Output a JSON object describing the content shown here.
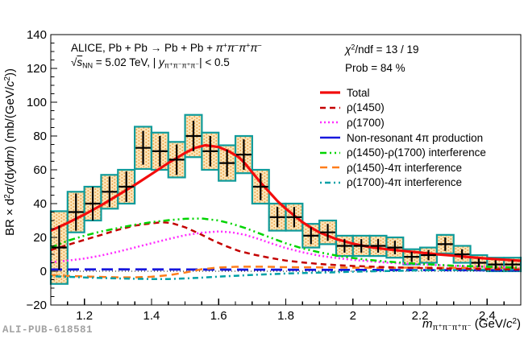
{
  "watermark": "ALI-PUB-618581",
  "annotations": {
    "alice_line1": [
      {
        "t": "ALICE, Pb + Pb "
      },
      {
        "t": "→"
      },
      {
        "t": " Pb + Pb + "
      },
      {
        "i": "π"
      },
      {
        "sup": "+"
      },
      {
        "i": "π"
      },
      {
        "sup": "−"
      },
      {
        "i": "π"
      },
      {
        "sup": "+"
      },
      {
        "i": "π"
      },
      {
        "sup": "−"
      }
    ],
    "alice_line2": [
      {
        "t": "√"
      },
      {
        "io": "s"
      },
      {
        "sub": "NN"
      },
      {
        "t": " = 5.02 TeV, | "
      },
      {
        "i": "y"
      },
      {
        "sub": "π⁺π⁻π⁺π⁻"
      },
      {
        "t": "| < 0.5"
      }
    ],
    "chi2": [
      {
        "i": "χ"
      },
      {
        "sup": "2"
      },
      {
        "t": "/ndf = 13 / 19"
      }
    ],
    "prob": [
      {
        "t": "Prob = 84 %"
      }
    ]
  },
  "axes": {
    "y_label": [
      {
        "t": "BR × d"
      },
      {
        "sup": "2"
      },
      {
        "i": "σ"
      },
      {
        "t": "/(d"
      },
      {
        "i": "y"
      },
      {
        "t": "d"
      },
      {
        "i": "m"
      },
      {
        "t": ") (mb/(GeV/"
      },
      {
        "i": "c"
      },
      {
        "sup": "2"
      },
      {
        "t": "))"
      }
    ],
    "x_label": [
      {
        "i": "m"
      },
      {
        "sub": "π⁺π⁻π⁺π⁻"
      },
      {
        "t": " (GeV/"
      },
      {
        "i": "c"
      },
      {
        "sup": "2"
      },
      {
        "t": ")"
      }
    ],
    "y_tick_values": [
      140,
      120,
      100,
      80,
      60,
      40,
      20,
      0,
      -20
    ],
    "y_tick_labels": [
      "140",
      "120",
      "100",
      "80",
      "60",
      "40",
      "20",
      "0",
      "−20"
    ],
    "x_tick_values": [
      1.2,
      1.4,
      1.6,
      1.8,
      2.0,
      2.2,
      2.4
    ],
    "x_tick_labels": [
      "1.2",
      "1.4",
      "1.6",
      "1.8",
      "2",
      "2.2",
      "2.4"
    ]
  },
  "chart_data": {
    "type": "scatter",
    "title": "",
    "xlabel": "m_pi+pi-pi+pi- (GeV/c^2)",
    "ylabel": "BR x d2sigma/(dydm) (mb/(GeV/c^2))",
    "x_range": [
      1.1,
      2.5
    ],
    "y_range": [
      -20,
      140
    ],
    "x_minor_step": 0.05,
    "y_minor_step": 5,
    "grid": false,
    "legend_position": "upper-right",
    "stats": {
      "chi2_ndf": "13 / 19",
      "prob": "84 %"
    },
    "data_series": {
      "name": "data-points-with-stat-and-syst-uncertainties",
      "point_format": [
        "mass_GeV",
        "value",
        "stat_error",
        "syst_error"
      ],
      "bin_half_width": 0.025,
      "marker_color": "#000000",
      "box_stroke": "#0f9b9b",
      "box_fill_base": "#fce4b8",
      "box_fill_hatch": "#eda84f",
      "points": [
        [
          1.125,
          14,
          13,
          21.5
        ],
        [
          1.175,
          35,
          11,
          12
        ],
        [
          1.225,
          40,
          10,
          10
        ],
        [
          1.275,
          47,
          9,
          10
        ],
        [
          1.325,
          50,
          9,
          10
        ],
        [
          1.375,
          73,
          10,
          12.5
        ],
        [
          1.425,
          71,
          9,
          11
        ],
        [
          1.475,
          66,
          9,
          10.5
        ],
        [
          1.525,
          80,
          9,
          12.5
        ],
        [
          1.575,
          71,
          9,
          11
        ],
        [
          1.625,
          64,
          8,
          10.5
        ],
        [
          1.675,
          69,
          9,
          11
        ],
        [
          1.725,
          50,
          8,
          10
        ],
        [
          1.775,
          32,
          6,
          8
        ],
        [
          1.825,
          32,
          6,
          8
        ],
        [
          1.875,
          21,
          5,
          7
        ],
        [
          1.925,
          23,
          5,
          7
        ],
        [
          1.975,
          15,
          4,
          6
        ],
        [
          2.025,
          15,
          4,
          6
        ],
        [
          2.075,
          15,
          4,
          6
        ],
        [
          2.125,
          14,
          4,
          6
        ],
        [
          2.175,
          8.5,
          3,
          4.5
        ],
        [
          2.225,
          9.5,
          3,
          4.5
        ],
        [
          2.275,
          16,
          4,
          5.5
        ],
        [
          2.325,
          10,
          3,
          5
        ],
        [
          2.375,
          5,
          2.5,
          4.5
        ],
        [
          2.425,
          4,
          2.5,
          4
        ],
        [
          2.475,
          4,
          2.5,
          4
        ]
      ]
    },
    "curves": [
      {
        "label": "Total",
        "color": "#f20c0c",
        "width": 3.2,
        "dash": null,
        "points": [
          [
            1.1,
            24
          ],
          [
            1.15,
            28.5
          ],
          [
            1.2,
            33.5
          ],
          [
            1.25,
            39
          ],
          [
            1.3,
            45
          ],
          [
            1.35,
            51
          ],
          [
            1.4,
            57.5
          ],
          [
            1.45,
            64
          ],
          [
            1.5,
            70
          ],
          [
            1.53,
            73
          ],
          [
            1.56,
            74.5
          ],
          [
            1.6,
            73.5
          ],
          [
            1.63,
            71
          ],
          [
            1.66,
            67.5
          ],
          [
            1.68,
            63.5
          ],
          [
            1.7,
            58.5
          ],
          [
            1.725,
            52.5
          ],
          [
            1.75,
            47
          ],
          [
            1.775,
            41.5
          ],
          [
            1.8,
            37
          ],
          [
            1.825,
            33
          ],
          [
            1.85,
            29
          ],
          [
            1.875,
            25.8
          ],
          [
            1.9,
            23
          ],
          [
            1.95,
            19
          ],
          [
            2.0,
            16.3
          ],
          [
            2.05,
            14.3
          ],
          [
            2.1,
            13
          ],
          [
            2.15,
            12
          ],
          [
            2.2,
            11
          ],
          [
            2.25,
            10
          ],
          [
            2.3,
            9.2
          ],
          [
            2.35,
            8.3
          ],
          [
            2.4,
            7.5
          ],
          [
            2.45,
            6.8
          ],
          [
            2.5,
            6.2
          ]
        ]
      },
      {
        "label": "ρ(1450)",
        "color": "#c40000",
        "width": 2.5,
        "dash": [
          7,
          5
        ],
        "points": [
          [
            1.1,
            12.5
          ],
          [
            1.15,
            15.5
          ],
          [
            1.2,
            18.5
          ],
          [
            1.25,
            21.5
          ],
          [
            1.3,
            24.5
          ],
          [
            1.35,
            27
          ],
          [
            1.4,
            28.3
          ],
          [
            1.43,
            29
          ],
          [
            1.46,
            28.5
          ],
          [
            1.5,
            26
          ],
          [
            1.54,
            22.5
          ],
          [
            1.58,
            18.5
          ],
          [
            1.62,
            15
          ],
          [
            1.66,
            12
          ],
          [
            1.7,
            10
          ],
          [
            1.75,
            8
          ],
          [
            1.8,
            6.3
          ],
          [
            1.85,
            5.2
          ],
          [
            1.9,
            4.3
          ],
          [
            1.95,
            3.6
          ],
          [
            2.0,
            3.1
          ],
          [
            2.1,
            2.4
          ],
          [
            2.2,
            1.9
          ],
          [
            2.3,
            1.5
          ],
          [
            2.4,
            1.2
          ],
          [
            2.5,
            1.0
          ]
        ]
      },
      {
        "label": "ρ(1700)",
        "color": "#ff2bff",
        "width": 2.5,
        "dash": [
          2,
          3
        ],
        "points": [
          [
            1.1,
            5.3
          ],
          [
            1.15,
            6.3
          ],
          [
            1.2,
            7.5
          ],
          [
            1.25,
            9.3
          ],
          [
            1.3,
            11.5
          ],
          [
            1.35,
            14
          ],
          [
            1.4,
            16.5
          ],
          [
            1.45,
            19
          ],
          [
            1.5,
            21.3
          ],
          [
            1.55,
            22.8
          ],
          [
            1.6,
            23.5
          ],
          [
            1.64,
            23
          ],
          [
            1.68,
            21.5
          ],
          [
            1.72,
            19
          ],
          [
            1.76,
            16.3
          ],
          [
            1.8,
            13.7
          ],
          [
            1.85,
            11.2
          ],
          [
            1.9,
            9.2
          ],
          [
            1.95,
            7.8
          ],
          [
            2.0,
            6.7
          ],
          [
            2.1,
            5.1
          ],
          [
            2.2,
            4.0
          ],
          [
            2.3,
            3.2
          ],
          [
            2.4,
            2.6
          ],
          [
            2.5,
            2.2
          ]
        ]
      },
      {
        "label": "Non-resonant 4π production",
        "color": "#1717dd",
        "width": 2.8,
        "dash": [
          14,
          7
        ],
        "legend_solid": true,
        "points": [
          [
            1.1,
            1.0
          ],
          [
            1.3,
            1.1
          ],
          [
            1.5,
            1.0
          ],
          [
            1.7,
            0.9
          ],
          [
            1.9,
            0.8
          ],
          [
            2.1,
            0.7
          ],
          [
            2.3,
            0.6
          ],
          [
            2.5,
            0.5
          ]
        ]
      },
      {
        "label": "ρ(1450)-ρ(1700) interference",
        "color": "#00d400",
        "width": 2.5,
        "dash": [
          8,
          4,
          2,
          4,
          2,
          4
        ],
        "points": [
          [
            1.1,
            14
          ],
          [
            1.15,
            18
          ],
          [
            1.2,
            21
          ],
          [
            1.25,
            23.5
          ],
          [
            1.3,
            25.5
          ],
          [
            1.35,
            27.5
          ],
          [
            1.4,
            29
          ],
          [
            1.45,
            30.2
          ],
          [
            1.5,
            31
          ],
          [
            1.55,
            31.2
          ],
          [
            1.6,
            30
          ],
          [
            1.64,
            28
          ],
          [
            1.68,
            25.5
          ],
          [
            1.72,
            22.5
          ],
          [
            1.76,
            19.5
          ],
          [
            1.8,
            16.5
          ],
          [
            1.85,
            13.5
          ],
          [
            1.9,
            11.2
          ],
          [
            1.95,
            9.3
          ],
          [
            2.0,
            7.8
          ],
          [
            2.05,
            6.6
          ],
          [
            2.1,
            5.7
          ],
          [
            2.2,
            4.3
          ],
          [
            2.3,
            3.3
          ],
          [
            2.4,
            2.6
          ],
          [
            2.5,
            2.1
          ]
        ]
      },
      {
        "label": "ρ(1450)-4π interference",
        "color": "#ff7d1a",
        "width": 2.5,
        "dash": [
          9,
          6
        ],
        "points": [
          [
            1.1,
            -2.4
          ],
          [
            1.15,
            -2.8
          ],
          [
            1.2,
            -3.1
          ],
          [
            1.25,
            -3.4
          ],
          [
            1.3,
            -3.6
          ],
          [
            1.35,
            -3.6
          ],
          [
            1.4,
            -3.3
          ],
          [
            1.45,
            -2.4
          ],
          [
            1.5,
            -0.8
          ],
          [
            1.55,
            1.2
          ],
          [
            1.6,
            2.2
          ],
          [
            1.65,
            2.6
          ],
          [
            1.7,
            2.7
          ],
          [
            1.75,
            2.6
          ],
          [
            1.8,
            2.4
          ],
          [
            1.9,
            2.3
          ],
          [
            2.0,
            2.1
          ],
          [
            2.1,
            2.0
          ],
          [
            2.2,
            2.2
          ],
          [
            2.3,
            2.0
          ],
          [
            2.4,
            2.1
          ],
          [
            2.5,
            1.9
          ]
        ]
      },
      {
        "label": "ρ(1700)-4π interference",
        "color": "#00a0a6",
        "width": 2.5,
        "dash": [
          2,
          4,
          7,
          4
        ],
        "points": [
          [
            1.1,
            -2.9
          ],
          [
            1.15,
            -3.3
          ],
          [
            1.2,
            -3.7
          ],
          [
            1.25,
            -4.0
          ],
          [
            1.3,
            -4.3
          ],
          [
            1.35,
            -4.5
          ],
          [
            1.4,
            -4.6
          ],
          [
            1.45,
            -4.6
          ],
          [
            1.5,
            -4.3
          ],
          [
            1.55,
            -3.8
          ],
          [
            1.6,
            -3.2
          ],
          [
            1.65,
            -2.7
          ],
          [
            1.7,
            -2.2
          ],
          [
            1.75,
            -1.8
          ],
          [
            1.8,
            -1.4
          ],
          [
            1.85,
            -1.1
          ],
          [
            1.9,
            -0.8
          ],
          [
            1.95,
            -0.6
          ],
          [
            2.0,
            -0.3
          ],
          [
            2.1,
            0.1
          ],
          [
            2.2,
            0.5
          ],
          [
            2.3,
            0.7
          ],
          [
            2.4,
            0.9
          ],
          [
            2.5,
            1.0
          ]
        ]
      }
    ]
  }
}
